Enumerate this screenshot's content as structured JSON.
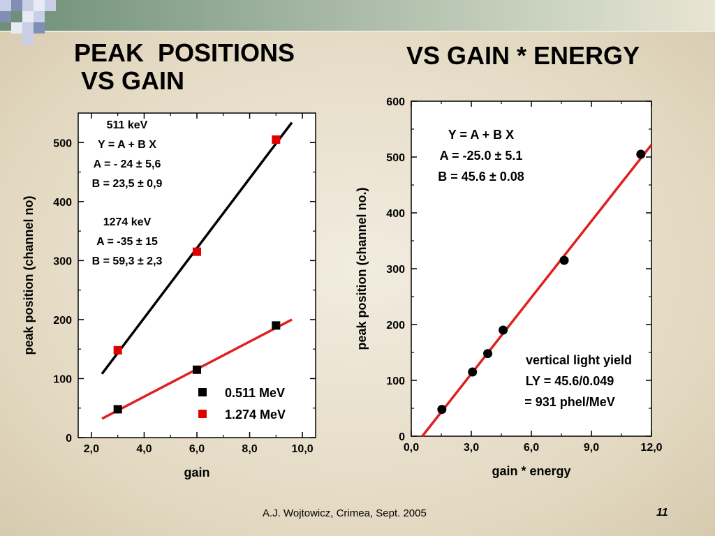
{
  "slide": {
    "title_left": [
      "PEAK  POSITIONS",
      " VS GAIN"
    ],
    "title_right": "VS GAIN * ENERGY",
    "footer": "A.J. Wojtowicz, Crimea, Sept. 2005",
    "page_number": "11",
    "colors": {
      "topbar": "#6e8f78",
      "corner_light": "#c8cfe6",
      "corner_dark": "#7f8fb5",
      "corner_green": "#6e8f78"
    }
  },
  "chart_data": [
    {
      "type": "scatter",
      "xlabel": "gain",
      "ylabel": "peak position (channel no)",
      "xlim": [
        1.5,
        10.5
      ],
      "ylim": [
        0,
        550
      ],
      "xticks": [
        2,
        4,
        6,
        8,
        10
      ],
      "xtick_labels": [
        "2,0",
        "4,0",
        "6,0",
        "8,0",
        "10,0"
      ],
      "yticks": [
        0,
        100,
        200,
        300,
        400,
        500
      ],
      "ytick_labels": [
        "0",
        "100",
        "200",
        "300",
        "400",
        "500"
      ],
      "grid": false,
      "legend_position": "bottom-right",
      "series": [
        {
          "name": "0.511 MeV",
          "marker": "square",
          "color": "#000000",
          "x": [
            3,
            6,
            9
          ],
          "y": [
            48,
            115,
            190
          ],
          "fit": {
            "color": "#e02020",
            "x": [
              2.4,
              9.6
            ],
            "y": [
              32,
              200
            ]
          }
        },
        {
          "name": "1.274 MeV",
          "marker": "square",
          "color": "#e00000",
          "x": [
            3,
            6,
            9
          ],
          "y": [
            148,
            315,
            505
          ],
          "fit": {
            "color": "#000000",
            "x": [
              2.4,
              9.6
            ],
            "y": [
              108,
              534
            ]
          }
        }
      ],
      "annotations": [
        "511 keV",
        "Y = A + B X",
        "A = - 24 ± 5,6",
        "B = 23,5 ± 0,9",
        "1274 keV",
        "A = -35 ± 15",
        "B = 59,3 ± 2,3"
      ]
    },
    {
      "type": "scatter",
      "xlabel": "gain * energy",
      "ylabel": "peak position (channel no.)",
      "xlim": [
        0,
        12
      ],
      "ylim": [
        0,
        600
      ],
      "xticks": [
        0,
        3,
        6,
        9,
        12
      ],
      "xtick_labels": [
        "0,0",
        "3,0",
        "6,0",
        "9,0",
        "12,0"
      ],
      "yticks": [
        0,
        100,
        200,
        300,
        400,
        500,
        600
      ],
      "ytick_labels": [
        "0",
        "100",
        "200",
        "300",
        "400",
        "500",
        "600"
      ],
      "grid": false,
      "series": [
        {
          "marker": "circle",
          "color": "#000000",
          "x": [
            1.53,
            3.06,
            3.82,
            4.59,
            7.64,
            11.47
          ],
          "y": [
            48,
            115,
            148,
            190,
            315,
            505
          ],
          "fit": {
            "color": "#e02020",
            "x": [
              0.55,
              12
            ],
            "y": [
              0,
              522
            ]
          }
        }
      ],
      "annotations": [
        "Y = A + B X",
        "A = -25.0 ± 5.1",
        "B = 45.6 ± 0.08",
        "vertical light yield",
        "LY = 45.6/0.049",
        "= 931 phel/MeV"
      ]
    }
  ]
}
